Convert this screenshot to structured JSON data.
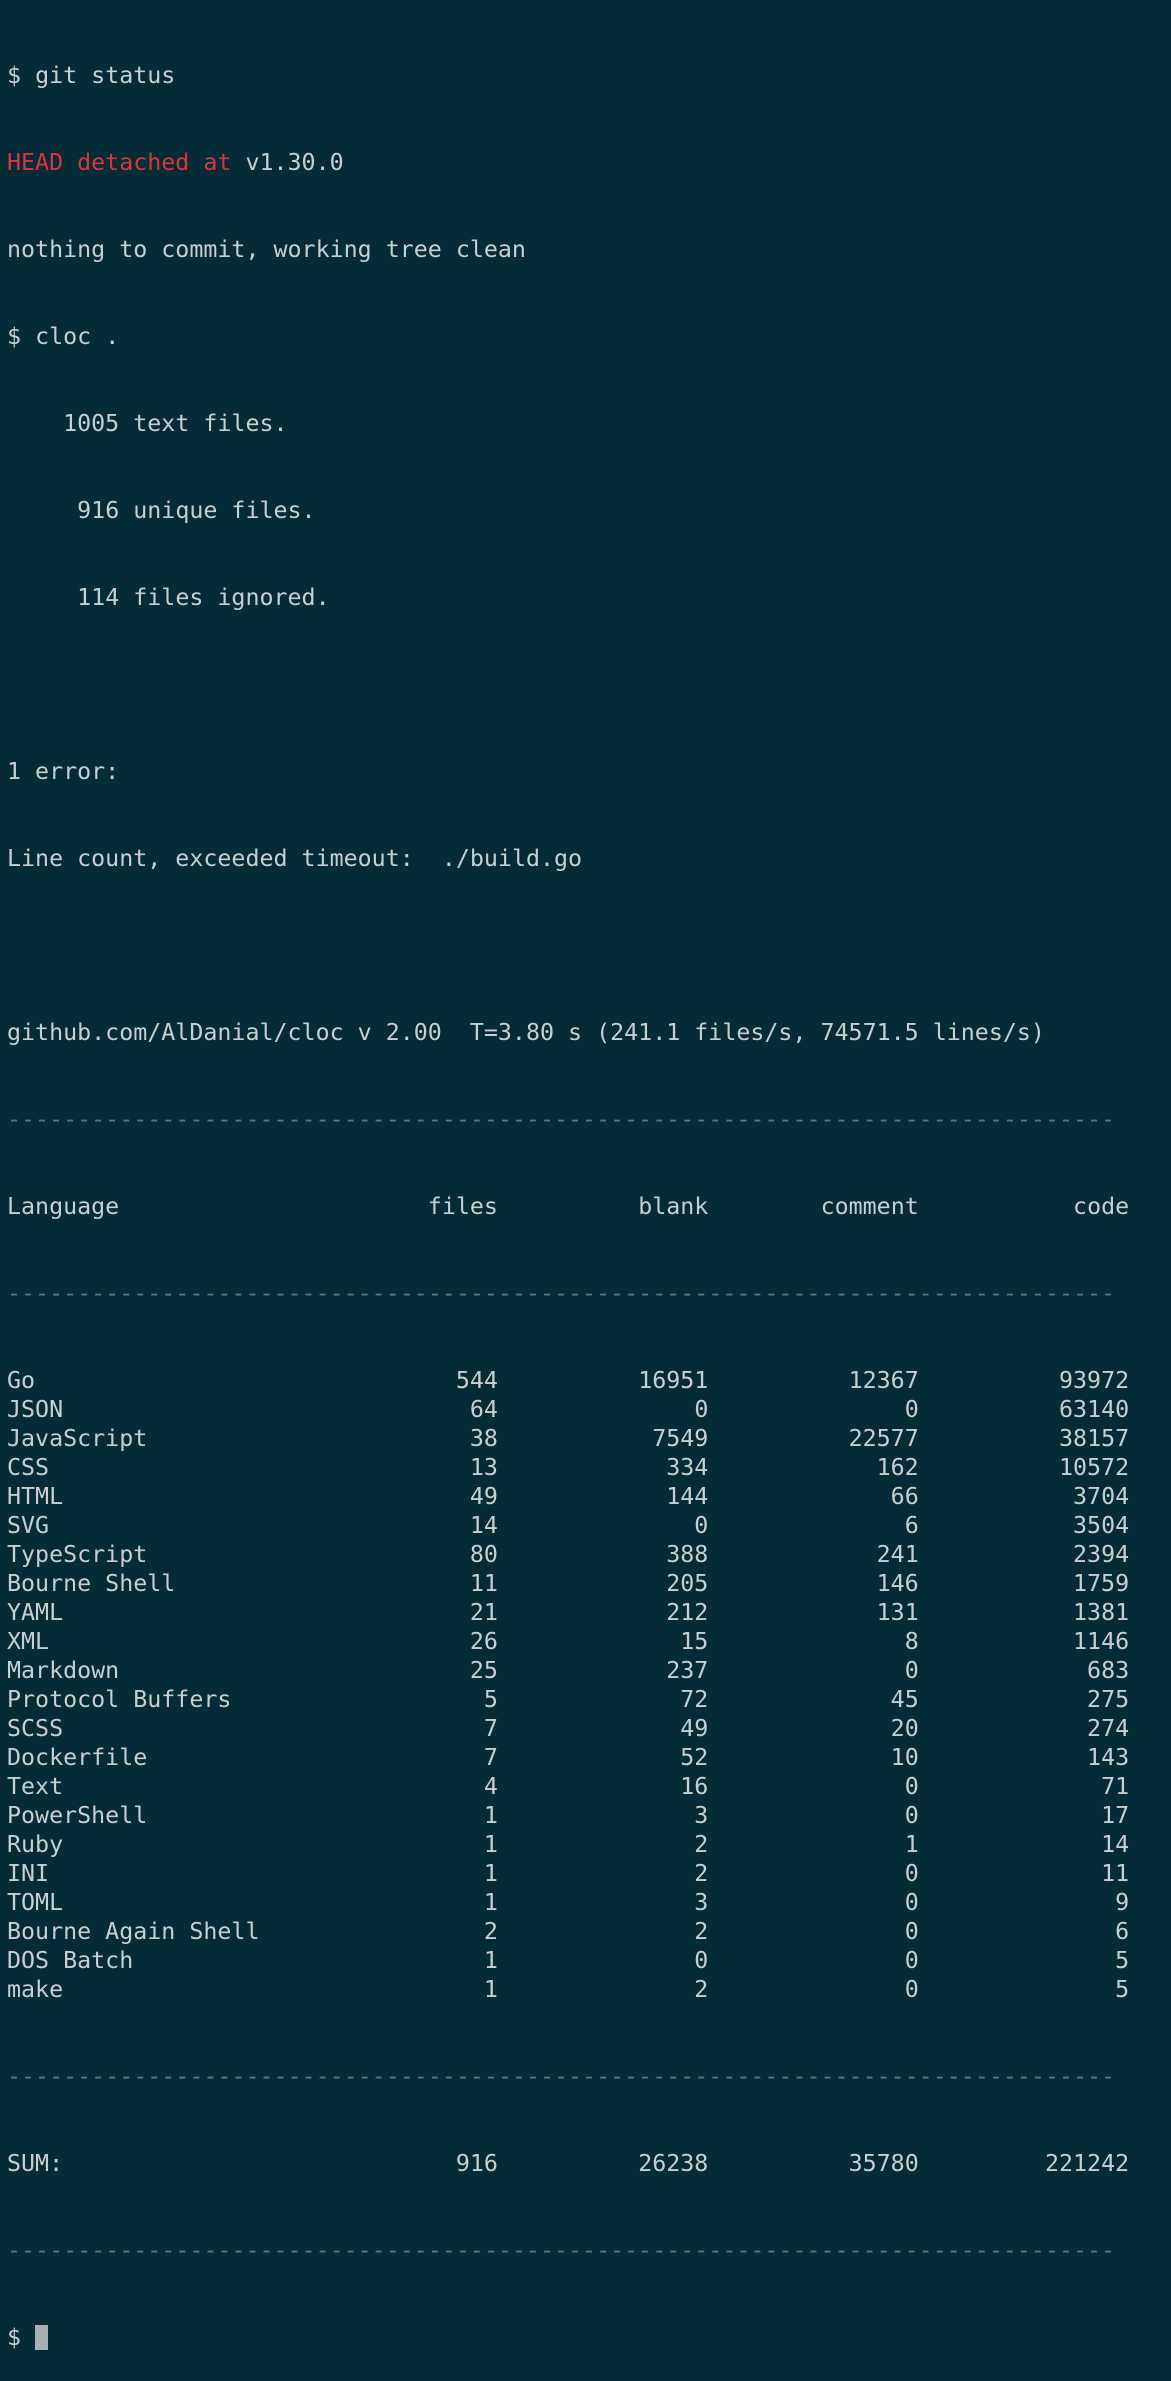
{
  "terminal": {
    "colors": {
      "background": "#042b36",
      "text": "#c8cfcf",
      "red": "#d9363a",
      "dim": "#5f7479",
      "cursor": "#a7b1b3"
    },
    "prompt": "$",
    "cmd_git": "git status",
    "git_head": "HEAD detached at",
    "git_ref": "v1.30.0",
    "git_status": "nothing to commit, working tree clean",
    "cmd_cloc": "cloc .",
    "text_files_count": "1005",
    "text_files_label": "text files.",
    "unique_files_count": "916",
    "unique_files_label": "unique files.",
    "ignored_files_count": "114",
    "ignored_files_label": "files ignored.",
    "error_header": "1 error:",
    "error_label": "Line count, exceeded timeout:",
    "error_file": "./build.go",
    "cloc_info": "github.com/AlDanial/cloc v 2.00  T=3.80 s (241.1 files/s, 74571.5 lines/s)",
    "rule": "-------------------------------------------------------------------------------",
    "headers": {
      "language": "Language",
      "files": "files",
      "blank": "blank",
      "comment": "comment",
      "code": "code"
    },
    "rows": [
      {
        "language": "Go",
        "files": "544",
        "blank": "16951",
        "comment": "12367",
        "code": "93972"
      },
      {
        "language": "JSON",
        "files": "64",
        "blank": "0",
        "comment": "0",
        "code": "63140"
      },
      {
        "language": "JavaScript",
        "files": "38",
        "blank": "7549",
        "comment": "22577",
        "code": "38157"
      },
      {
        "language": "CSS",
        "files": "13",
        "blank": "334",
        "comment": "162",
        "code": "10572"
      },
      {
        "language": "HTML",
        "files": "49",
        "blank": "144",
        "comment": "66",
        "code": "3704"
      },
      {
        "language": "SVG",
        "files": "14",
        "blank": "0",
        "comment": "6",
        "code": "3504"
      },
      {
        "language": "TypeScript",
        "files": "80",
        "blank": "388",
        "comment": "241",
        "code": "2394"
      },
      {
        "language": "Bourne Shell",
        "files": "11",
        "blank": "205",
        "comment": "146",
        "code": "1759"
      },
      {
        "language": "YAML",
        "files": "21",
        "blank": "212",
        "comment": "131",
        "code": "1381"
      },
      {
        "language": "XML",
        "files": "26",
        "blank": "15",
        "comment": "8",
        "code": "1146"
      },
      {
        "language": "Markdown",
        "files": "25",
        "blank": "237",
        "comment": "0",
        "code": "683"
      },
      {
        "language": "Protocol Buffers",
        "files": "5",
        "blank": "72",
        "comment": "45",
        "code": "275"
      },
      {
        "language": "SCSS",
        "files": "7",
        "blank": "49",
        "comment": "20",
        "code": "274"
      },
      {
        "language": "Dockerfile",
        "files": "7",
        "blank": "52",
        "comment": "10",
        "code": "143"
      },
      {
        "language": "Text",
        "files": "4",
        "blank": "16",
        "comment": "0",
        "code": "71"
      },
      {
        "language": "PowerShell",
        "files": "1",
        "blank": "3",
        "comment": "0",
        "code": "17"
      },
      {
        "language": "Ruby",
        "files": "1",
        "blank": "2",
        "comment": "1",
        "code": "14"
      },
      {
        "language": "INI",
        "files": "1",
        "blank": "2",
        "comment": "0",
        "code": "11"
      },
      {
        "language": "TOML",
        "files": "1",
        "blank": "3",
        "comment": "0",
        "code": "9"
      },
      {
        "language": "Bourne Again Shell",
        "files": "2",
        "blank": "2",
        "comment": "0",
        "code": "6"
      },
      {
        "language": "DOS Batch",
        "files": "1",
        "blank": "0",
        "comment": "0",
        "code": "5"
      },
      {
        "language": "make",
        "files": "1",
        "blank": "2",
        "comment": "0",
        "code": "5"
      }
    ],
    "sum": {
      "label": "SUM:",
      "files": "916",
      "blank": "26238",
      "comment": "35780",
      "code": "221242"
    }
  }
}
